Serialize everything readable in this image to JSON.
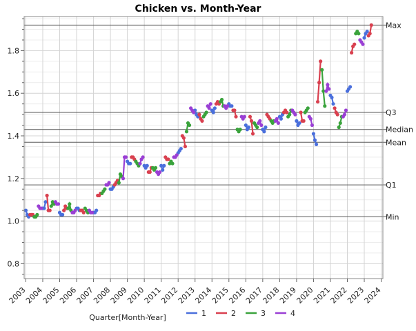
{
  "chart_data": {
    "type": "line",
    "title": "Chicken vs. Month-Year",
    "xlabel": "Quarter[Month-Year]",
    "ylabel": "",
    "xlim": [
      2002.9,
      2024.1
    ],
    "ylim": [
      0.73,
      1.96
    ],
    "grid": true,
    "x_ticks": [
      "2003",
      "2004",
      "2005",
      "2006",
      "2007",
      "2008",
      "2009",
      "2010",
      "2011",
      "2012",
      "2013",
      "2014",
      "2015",
      "2016",
      "2017",
      "2018",
      "2019",
      "2020",
      "2021",
      "2022",
      "2023",
      "2024"
    ],
    "y_ticks": [
      "0.8",
      "1.0",
      "1.2",
      "1.4",
      "1.6",
      "1.8"
    ],
    "y_tick_values": [
      0.8,
      1.0,
      1.2,
      1.4,
      1.6,
      1.8
    ],
    "reference_lines": [
      {
        "label": "Max",
        "value": 1.92
      },
      {
        "label": "Q3",
        "value": 1.51
      },
      {
        "label": "Median",
        "value": 1.43
      },
      {
        "label": "Mean",
        "value": 1.37
      },
      {
        "label": "Q1",
        "value": 1.17
      },
      {
        "label": "Min",
        "value": 1.02
      }
    ],
    "legend_position": "bottom",
    "colors": {
      "1": "#4a6fdc",
      "2": "#d9404f",
      "3": "#3aa33c",
      "4": "#9a3fd4"
    },
    "series": [
      {
        "name": "1",
        "x": [
          2003.0,
          2003.083,
          2003.167,
          2004.0,
          2004.083,
          2004.167,
          2005.0,
          2005.083,
          2005.167,
          2006.0,
          2006.083,
          2006.167,
          2007.0,
          2007.083,
          2007.167,
          2008.0,
          2008.083,
          2008.167,
          2009.0,
          2009.083,
          2009.167,
          2010.0,
          2010.083,
          2010.167,
          2011.0,
          2011.083,
          2011.167,
          2012.0,
          2012.083,
          2012.167,
          2013.0,
          2013.083,
          2013.167,
          2014.0,
          2014.083,
          2014.167,
          2015.0,
          2015.083,
          2015.167,
          2016.0,
          2016.083,
          2016.167,
          2017.0,
          2017.083,
          2017.167,
          2018.0,
          2018.083,
          2018.167,
          2019.0,
          2019.083,
          2019.167,
          2020.0,
          2020.083,
          2020.167,
          2021.0,
          2021.083,
          2021.167,
          2022.0,
          2022.083,
          2022.167,
          2023.0,
          2023.083,
          2023.167
        ],
        "values": [
          1.05,
          1.03,
          1.02,
          1.06,
          1.06,
          1.09,
          1.04,
          1.03,
          1.03,
          1.06,
          1.06,
          1.05,
          1.04,
          1.04,
          1.05,
          1.15,
          1.15,
          1.16,
          1.28,
          1.27,
          1.27,
          1.26,
          1.25,
          1.26,
          1.26,
          1.24,
          1.26,
          1.32,
          1.33,
          1.34,
          1.52,
          1.5,
          1.49,
          1.52,
          1.51,
          1.53,
          1.55,
          1.54,
          1.54,
          1.45,
          1.43,
          1.44,
          1.43,
          1.42,
          1.44,
          1.49,
          1.48,
          1.5,
          1.47,
          1.45,
          1.46,
          1.41,
          1.38,
          1.36,
          1.59,
          1.58,
          1.55,
          1.61,
          1.62,
          1.63,
          1.86,
          1.88,
          1.89
        ]
      },
      {
        "name": "2",
        "x": [
          2003.25,
          2003.333,
          2003.417,
          2004.25,
          2004.333,
          2004.417,
          2005.25,
          2005.333,
          2005.417,
          2006.25,
          2006.333,
          2006.417,
          2007.25,
          2007.333,
          2007.417,
          2008.25,
          2008.333,
          2008.417,
          2009.25,
          2009.333,
          2009.417,
          2010.25,
          2010.333,
          2010.417,
          2011.25,
          2011.333,
          2011.417,
          2012.25,
          2012.333,
          2012.417,
          2013.25,
          2013.333,
          2013.417,
          2014.25,
          2014.333,
          2014.417,
          2015.25,
          2015.333,
          2015.417,
          2016.25,
          2016.333,
          2016.417,
          2017.25,
          2017.333,
          2017.417,
          2018.25,
          2018.333,
          2018.417,
          2019.25,
          2019.333,
          2019.417,
          2020.25,
          2020.333,
          2020.417,
          2021.25,
          2021.333,
          2021.417,
          2022.25,
          2022.333,
          2022.417,
          2023.25,
          2023.333,
          2023.417
        ],
        "values": [
          1.03,
          1.03,
          1.03,
          1.12,
          1.05,
          1.05,
          1.05,
          1.07,
          1.06,
          1.05,
          1.05,
          1.04,
          1.12,
          1.12,
          1.13,
          1.17,
          1.18,
          1.19,
          1.3,
          1.3,
          1.29,
          1.23,
          1.23,
          1.25,
          1.3,
          1.29,
          1.29,
          1.4,
          1.39,
          1.35,
          1.5,
          1.48,
          1.47,
          1.55,
          1.56,
          1.55,
          1.52,
          1.52,
          1.49,
          1.49,
          1.47,
          1.41,
          1.5,
          1.49,
          1.48,
          1.51,
          1.52,
          1.51,
          1.51,
          1.47,
          1.47,
          1.56,
          1.65,
          1.75,
          1.53,
          1.51,
          1.5,
          1.79,
          1.82,
          1.83,
          1.87,
          1.88,
          1.92
        ]
      },
      {
        "name": "3",
        "x": [
          2003.5,
          2003.583,
          2003.667,
          2004.5,
          2004.583,
          2004.667,
          2005.5,
          2005.583,
          2005.667,
          2006.5,
          2006.583,
          2006.667,
          2007.5,
          2007.583,
          2007.667,
          2008.5,
          2008.583,
          2008.667,
          2009.5,
          2009.583,
          2009.667,
          2010.5,
          2010.583,
          2010.667,
          2011.5,
          2011.583,
          2011.667,
          2012.5,
          2012.583,
          2012.667,
          2013.5,
          2013.583,
          2013.667,
          2014.5,
          2014.583,
          2014.667,
          2015.5,
          2015.583,
          2015.667,
          2016.5,
          2016.583,
          2016.667,
          2017.5,
          2017.583,
          2017.667,
          2018.5,
          2018.583,
          2018.667,
          2019.5,
          2019.583,
          2019.667,
          2020.5,
          2020.583,
          2020.667,
          2021.5,
          2021.583,
          2021.667,
          2022.5,
          2022.583,
          2022.667
        ],
        "values": [
          1.02,
          1.02,
          1.03,
          1.07,
          1.09,
          1.08,
          1.06,
          1.08,
          1.05,
          1.06,
          1.05,
          1.04,
          1.13,
          1.14,
          1.15,
          1.18,
          1.22,
          1.21,
          1.28,
          1.27,
          1.26,
          1.25,
          1.24,
          1.25,
          1.27,
          1.28,
          1.27,
          1.42,
          1.46,
          1.45,
          1.49,
          1.5,
          1.51,
          1.56,
          1.57,
          1.54,
          1.43,
          1.42,
          1.43,
          1.46,
          1.45,
          1.44,
          1.47,
          1.46,
          1.47,
          1.49,
          1.5,
          1.52,
          1.51,
          1.52,
          1.53,
          1.71,
          1.61,
          1.54,
          1.44,
          1.46,
          1.49,
          1.88,
          1.89,
          1.88
        ]
      },
      {
        "name": "4",
        "x": [
          2003.75,
          2003.833,
          2003.917,
          2004.75,
          2004.833,
          2004.917,
          2005.75,
          2005.833,
          2005.917,
          2006.75,
          2006.833,
          2006.917,
          2007.75,
          2007.833,
          2007.917,
          2008.75,
          2008.833,
          2008.917,
          2009.75,
          2009.833,
          2009.917,
          2010.75,
          2010.833,
          2010.917,
          2011.75,
          2011.833,
          2011.917,
          2012.75,
          2012.833,
          2012.917,
          2013.75,
          2013.833,
          2013.917,
          2014.75,
          2014.833,
          2014.917,
          2015.75,
          2015.833,
          2015.917,
          2016.75,
          2016.833,
          2016.917,
          2017.75,
          2017.833,
          2017.917,
          2018.75,
          2018.833,
          2018.917,
          2019.75,
          2019.833,
          2019.917,
          2020.75,
          2020.833,
          2020.917,
          2021.75,
          2021.833,
          2021.917,
          2022.75,
          2022.833,
          2022.917
        ],
        "values": [
          1.07,
          1.06,
          1.06,
          1.09,
          1.08,
          1.08,
          1.04,
          1.04,
          1.05,
          1.05,
          1.04,
          1.04,
          1.17,
          1.17,
          1.18,
          1.2,
          1.3,
          1.3,
          1.27,
          1.29,
          1.3,
          1.23,
          1.22,
          1.23,
          1.3,
          1.3,
          1.31,
          1.53,
          1.52,
          1.51,
          1.54,
          1.53,
          1.55,
          1.54,
          1.53,
          1.54,
          1.49,
          1.48,
          1.49,
          1.46,
          1.47,
          1.45,
          1.47,
          1.48,
          1.46,
          1.52,
          1.51,
          1.5,
          1.49,
          1.48,
          1.45,
          1.61,
          1.64,
          1.62,
          1.49,
          1.5,
          1.52,
          1.85,
          1.84,
          1.83
        ]
      }
    ]
  }
}
